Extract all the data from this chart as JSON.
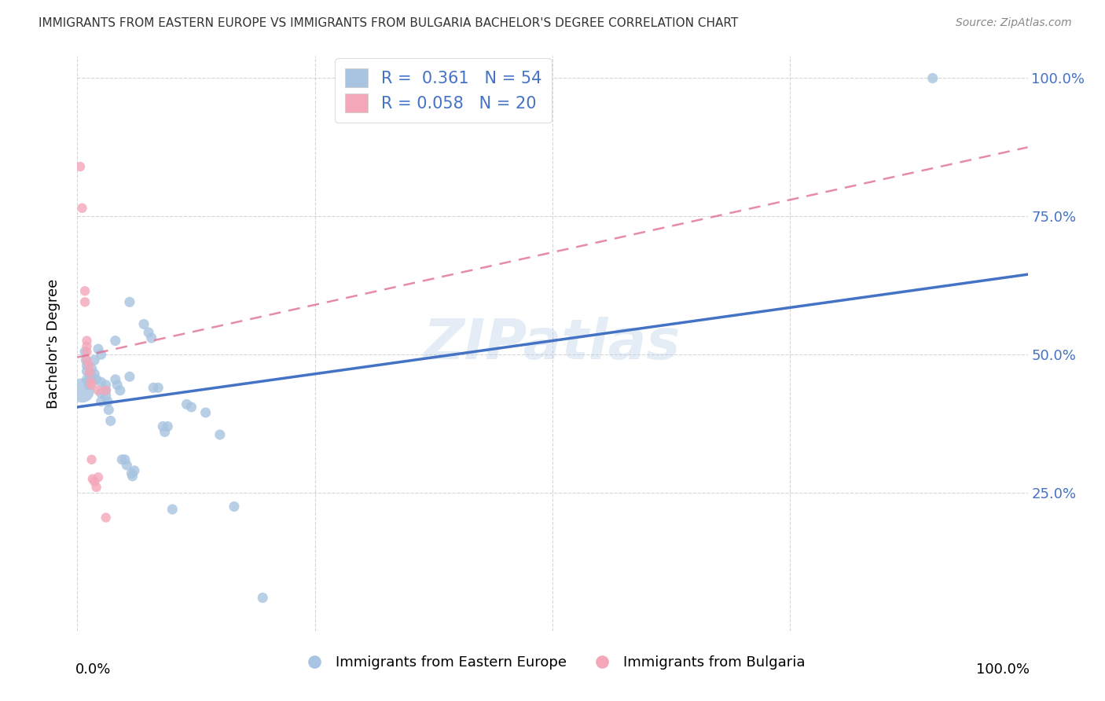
{
  "title": "IMMIGRANTS FROM EASTERN EUROPE VS IMMIGRANTS FROM BULGARIA BACHELOR'S DEGREE CORRELATION CHART",
  "source": "Source: ZipAtlas.com",
  "ylabel": "Bachelor's Degree",
  "legend_label1": "Immigrants from Eastern Europe",
  "legend_label2": "Immigrants from Bulgaria",
  "R1": "0.361",
  "N1": "54",
  "R2": "0.058",
  "N2": "20",
  "color_blue": "#a8c4e0",
  "color_pink": "#f4a7b9",
  "line_blue": "#4472c4",
  "line_pink": "#e07090",
  "watermark": "ZIPatlas",
  "blue_scatter": [
    [
      0.005,
      0.435
    ],
    [
      0.008,
      0.505
    ],
    [
      0.009,
      0.49
    ],
    [
      0.01,
      0.48
    ],
    [
      0.01,
      0.47
    ],
    [
      0.01,
      0.455
    ],
    [
      0.012,
      0.445
    ],
    [
      0.013,
      0.455
    ],
    [
      0.013,
      0.465
    ],
    [
      0.015,
      0.475
    ],
    [
      0.015,
      0.46
    ],
    [
      0.015,
      0.45
    ],
    [
      0.018,
      0.49
    ],
    [
      0.018,
      0.465
    ],
    [
      0.02,
      0.455
    ],
    [
      0.022,
      0.51
    ],
    [
      0.025,
      0.5
    ],
    [
      0.025,
      0.45
    ],
    [
      0.025,
      0.43
    ],
    [
      0.025,
      0.415
    ],
    [
      0.03,
      0.445
    ],
    [
      0.03,
      0.435
    ],
    [
      0.03,
      0.425
    ],
    [
      0.032,
      0.415
    ],
    [
      0.033,
      0.4
    ],
    [
      0.035,
      0.38
    ],
    [
      0.04,
      0.525
    ],
    [
      0.04,
      0.455
    ],
    [
      0.042,
      0.445
    ],
    [
      0.045,
      0.435
    ],
    [
      0.047,
      0.31
    ],
    [
      0.05,
      0.31
    ],
    [
      0.052,
      0.3
    ],
    [
      0.055,
      0.595
    ],
    [
      0.055,
      0.46
    ],
    [
      0.057,
      0.285
    ],
    [
      0.058,
      0.28
    ],
    [
      0.06,
      0.29
    ],
    [
      0.07,
      0.555
    ],
    [
      0.075,
      0.54
    ],
    [
      0.078,
      0.53
    ],
    [
      0.08,
      0.44
    ],
    [
      0.085,
      0.44
    ],
    [
      0.09,
      0.37
    ],
    [
      0.092,
      0.36
    ],
    [
      0.095,
      0.37
    ],
    [
      0.1,
      0.22
    ],
    [
      0.115,
      0.41
    ],
    [
      0.12,
      0.405
    ],
    [
      0.135,
      0.395
    ],
    [
      0.15,
      0.355
    ],
    [
      0.165,
      0.225
    ],
    [
      0.195,
      0.06
    ],
    [
      0.9,
      1.0
    ]
  ],
  "pink_scatter": [
    [
      0.003,
      0.84
    ],
    [
      0.005,
      0.765
    ],
    [
      0.008,
      0.615
    ],
    [
      0.008,
      0.595
    ],
    [
      0.01,
      0.525
    ],
    [
      0.01,
      0.515
    ],
    [
      0.01,
      0.505
    ],
    [
      0.01,
      0.49
    ],
    [
      0.012,
      0.48
    ],
    [
      0.013,
      0.468
    ],
    [
      0.014,
      0.45
    ],
    [
      0.015,
      0.445
    ],
    [
      0.015,
      0.31
    ],
    [
      0.016,
      0.275
    ],
    [
      0.018,
      0.27
    ],
    [
      0.02,
      0.26
    ],
    [
      0.022,
      0.278
    ],
    [
      0.022,
      0.435
    ],
    [
      0.03,
      0.205
    ],
    [
      0.03,
      0.435
    ]
  ],
  "blue_sizes": [
    500,
    80,
    80,
    80,
    80,
    80,
    80,
    80,
    80,
    80,
    80,
    80,
    80,
    80,
    80,
    80,
    80,
    80,
    80,
    80,
    80,
    80,
    80,
    80,
    80,
    80,
    80,
    80,
    80,
    80,
    80,
    80,
    80,
    80,
    80,
    80,
    80,
    80,
    80,
    80,
    80,
    80,
    80,
    80,
    80,
    80,
    80,
    80,
    80,
    80,
    80,
    80,
    80,
    80
  ],
  "pink_sizes": [
    80,
    80,
    80,
    80,
    80,
    80,
    80,
    80,
    80,
    80,
    80,
    80,
    80,
    80,
    80,
    80,
    80,
    80,
    80,
    80
  ],
  "blue_line_x": [
    0.0,
    1.0
  ],
  "blue_line_y": [
    0.405,
    0.645
  ],
  "pink_line_x": [
    0.0,
    1.0
  ],
  "pink_line_y": [
    0.495,
    0.875
  ],
  "xlim": [
    0.0,
    1.0
  ],
  "ylim": [
    0.0,
    1.04
  ],
  "ytick_vals": [
    0.25,
    0.5,
    0.75,
    1.0
  ],
  "ytick_labels": [
    "25.0%",
    "50.0%",
    "75.0%",
    "100.0%"
  ]
}
